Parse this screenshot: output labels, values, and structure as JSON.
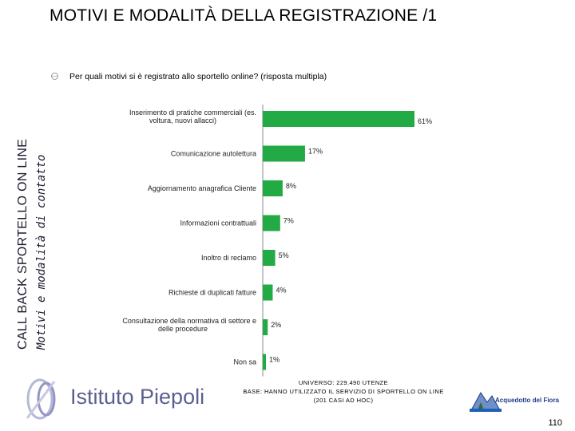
{
  "header": {
    "title": "MOTIVI E MODALITÀ DELLA REGISTRAZIONE /1"
  },
  "sidebar": {
    "line1": "CALL BACK SPORTELLO ON LINE",
    "line2": "Motivi e modalità di contatto"
  },
  "question": "Per quali motivi si è registrato allo sportello online? (risposta multipla)",
  "chart_data": {
    "type": "bar",
    "orientation": "horizontal",
    "title": "",
    "categories": [
      "Inserimento di pratiche commerciali (es. voltura, nuovi allacci)",
      "Comunicazione autolettura",
      "Aggiornamento anagrafica Cliente",
      "Informazioni contrattuali",
      "Inoltro di reclamo",
      "Richieste di duplicati fatture",
      "Consultazione della normativa di settore e delle procedure",
      "Non sa"
    ],
    "values": [
      61,
      17,
      8,
      7,
      5,
      4,
      2,
      1
    ],
    "value_labels": [
      "61%",
      "17%",
      "8%",
      "7%",
      "5%",
      "4%",
      "2%",
      "1%"
    ],
    "xlim": [
      0,
      61
    ],
    "unit": "%",
    "bar_color": "#22aa44"
  },
  "footer": {
    "universe": "UNIVERSO: 229.490 UTENZE",
    "base": "BASE: HANNO UTILIZZATO IL SERVIZIO DI SPORTELLO ON LINE",
    "cases": "(201 CASI AD HOC)"
  },
  "logo": {
    "name": "Istituto Piepoli"
  },
  "brand": {
    "name": "Acquedotto del Fiora"
  },
  "page_number": "110"
}
